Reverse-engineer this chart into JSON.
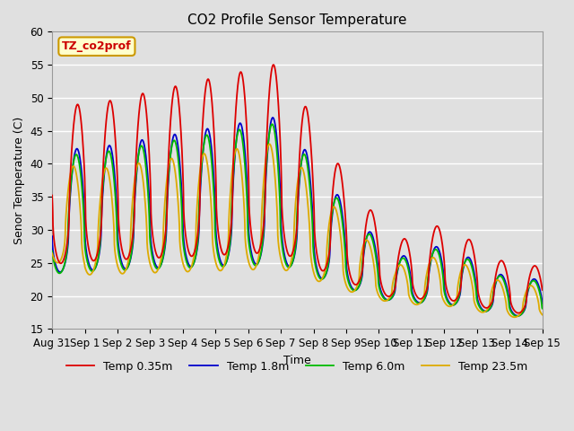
{
  "title": "CO2 Profile Sensor Temperature",
  "xlabel": "Time",
  "ylabel": "Senor Temperature (C)",
  "ylim": [
    15,
    60
  ],
  "annotation_text": "TZ_co2prof",
  "annotation_color": "#cc0000",
  "annotation_bg": "#ffffcc",
  "annotation_border": "#cc9900",
  "series": [
    {
      "label": "Temp 0.35m",
      "color": "#dd0000"
    },
    {
      "label": "Temp 1.8m",
      "color": "#0000cc"
    },
    {
      "label": "Temp 6.0m",
      "color": "#00bb00"
    },
    {
      "label": "Temp 23.5m",
      "color": "#ddaa00"
    }
  ],
  "tick_labels": [
    "Aug 31",
    "Sep 1",
    "Sep 2",
    "Sep 3",
    "Sep 4",
    "Sep 5",
    "Sep 6",
    "Sep 7",
    "Sep 8",
    "Sep 9",
    "Sep 10",
    "Sep 11",
    "Sep 12",
    "Sep 13",
    "Sep 14",
    "Sep 15"
  ],
  "tick_positions": [
    0,
    1,
    2,
    3,
    4,
    5,
    6,
    7,
    8,
    9,
    10,
    11,
    12,
    13,
    14,
    15
  ],
  "yticks": [
    15,
    20,
    25,
    30,
    35,
    40,
    45,
    50,
    55,
    60
  ],
  "figsize": [
    6.4,
    4.8
  ],
  "dpi": 100
}
